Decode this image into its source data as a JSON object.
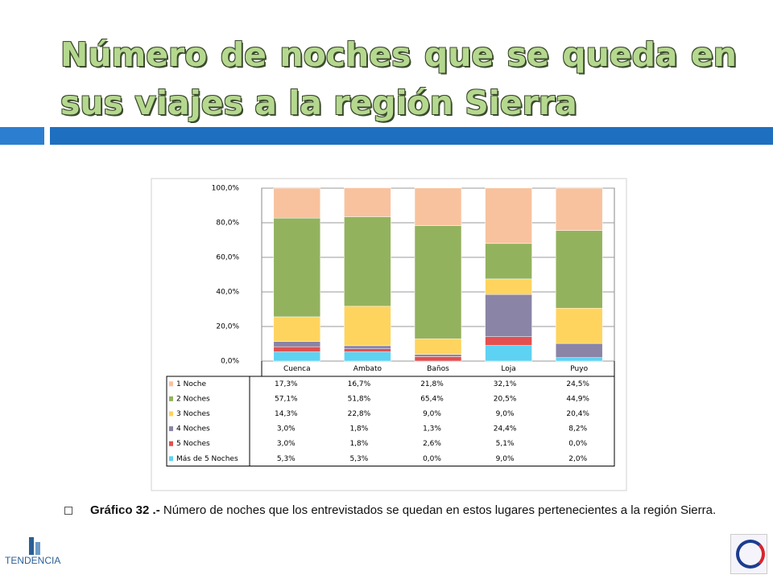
{
  "title": "Número de noches que se queda en sus viajes a la región Sierra",
  "caption": {
    "label": "Gráfico 32 .-",
    "text": "Número de noches que los entrevistados se quedan en estos lugares pertenecientes a la región Sierra."
  },
  "logo": "TENDENCIA",
  "chart_data": {
    "type": "stacked_bar",
    "categories": [
      "Cuenca",
      "Ambato",
      "Baños",
      "Loja",
      "Puyo"
    ],
    "series": [
      {
        "name": "1 Noche",
        "color": "#f8c29e",
        "values": [
          17.3,
          16.7,
          21.8,
          32.1,
          24.5
        ],
        "value_labels": [
          "17,3%",
          "16,7%",
          "21,8%",
          "32,1%",
          "24,5%"
        ]
      },
      {
        "name": "2 Noches",
        "color": "#93b25e",
        "values": [
          57.1,
          51.8,
          65.4,
          20.5,
          44.9
        ],
        "value_labels": [
          "57,1%",
          "51,8%",
          "65,4%",
          "20,5%",
          "44,9%"
        ]
      },
      {
        "name": "3 Noches",
        "color": "#ffd45e",
        "values": [
          14.3,
          22.8,
          9.0,
          9.0,
          20.4
        ],
        "value_labels": [
          "14,3%",
          "22,8%",
          "9,0%",
          "9,0%",
          "20,4%"
        ]
      },
      {
        "name": "4 Noches",
        "color": "#8a84a6",
        "values": [
          3.0,
          1.8,
          1.3,
          24.4,
          8.2
        ],
        "value_labels": [
          "3,0%",
          "1,8%",
          "1,3%",
          "24,4%",
          "8,2%"
        ]
      },
      {
        "name": "5 Noches",
        "color": "#e2504f",
        "values": [
          3.0,
          1.8,
          2.6,
          5.1,
          0.0
        ],
        "value_labels": [
          "3,0%",
          "1,8%",
          "2,6%",
          "5,1%",
          "0,0%"
        ]
      },
      {
        "name": "Más de 5 Noches",
        "color": "#5ed2f2",
        "values": [
          5.3,
          5.3,
          0.0,
          9.0,
          2.0
        ],
        "value_labels": [
          "5,3%",
          "5,3%",
          "0,0%",
          "9,0%",
          "2,0%"
        ]
      }
    ],
    "ylim": [
      0,
      100
    ],
    "yticks": [
      {
        "value": 0,
        "label": "0,0%"
      },
      {
        "value": 20,
        "label": "20,0%"
      },
      {
        "value": 40,
        "label": "40,0%"
      },
      {
        "value": 60,
        "label": "60,0%"
      },
      {
        "value": 80,
        "label": "80,0%"
      },
      {
        "value": 100,
        "label": "100,0%"
      }
    ],
    "grid": true
  }
}
